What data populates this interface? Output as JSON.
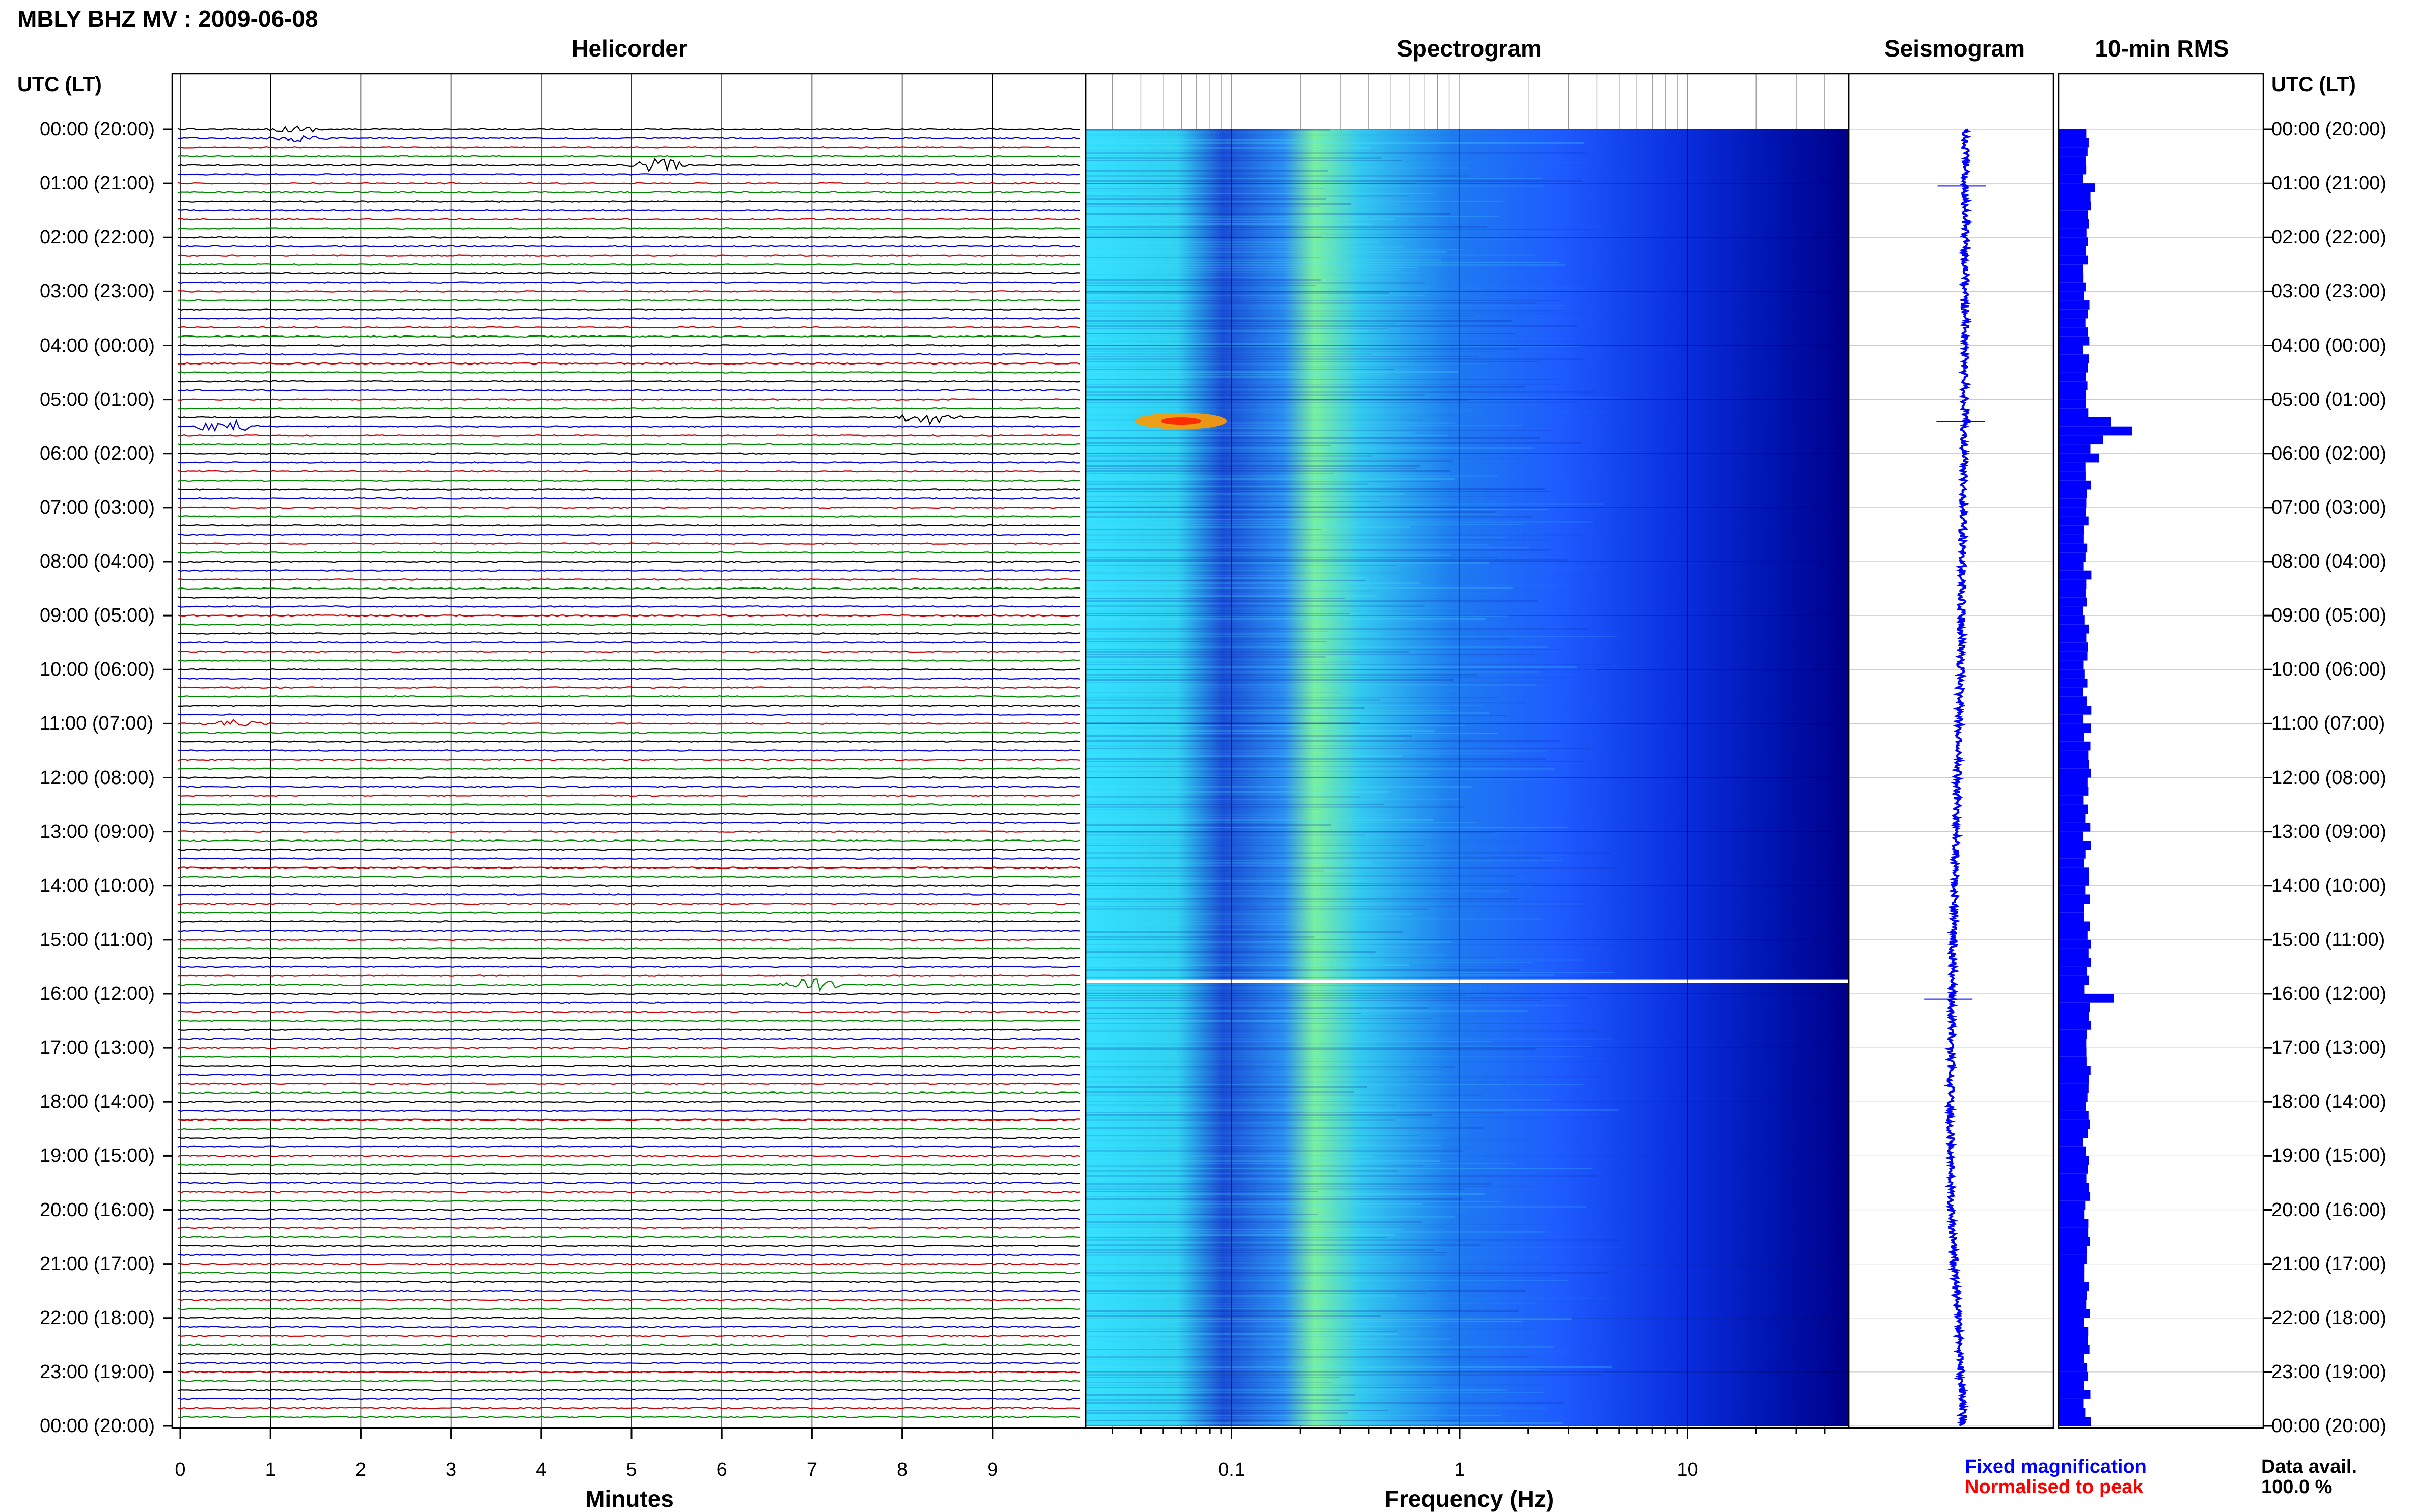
{
  "title": "MBLY BHZ MV : 2009-06-08",
  "panels": {
    "helicorder": "Helicorder",
    "spectrogram": "Spectrogram",
    "seismogram": "Seismogram",
    "rms": "10-min RMS"
  },
  "utc_header_left": "UTC (LT)",
  "utc_header_right": "UTC (LT)",
  "time_labels": [
    "00:00 (20:00)",
    "01:00 (21:00)",
    "02:00 (22:00)",
    "03:00 (23:00)",
    "04:00 (00:00)",
    "05:00 (01:00)",
    "06:00 (02:00)",
    "07:00 (03:00)",
    "08:00 (04:00)",
    "09:00 (05:00)",
    "10:00 (06:00)",
    "11:00 (07:00)",
    "12:00 (08:00)",
    "13:00 (09:00)",
    "14:00 (10:00)",
    "15:00 (11:00)",
    "16:00 (12:00)",
    "17:00 (13:00)",
    "18:00 (14:00)",
    "19:00 (15:00)",
    "20:00 (16:00)",
    "21:00 (17:00)",
    "22:00 (18:00)",
    "23:00 (19:00)",
    "00:00 (20:00)"
  ],
  "helicorder_axis": {
    "label": "Minutes",
    "ticks": [
      "0",
      "1",
      "2",
      "3",
      "4",
      "5",
      "6",
      "7",
      "8",
      "9"
    ]
  },
  "spectrogram_axis": {
    "label": "Frequency (Hz)",
    "ticks": [
      "0.1",
      "1",
      "10"
    ]
  },
  "legend": {
    "fixed": "Fixed magnification",
    "normalised": "Normalised to peak",
    "fixed_color": "#0000ff",
    "normalised_color": "#ff0000"
  },
  "data_availability": {
    "label": "Data avail.",
    "value": "100.0 %"
  },
  "colors": {
    "trace_cycle": [
      "#000000",
      "#0000cc",
      "#cc0000",
      "#008800"
    ],
    "spectrogram_low": "#00008a",
    "spectrogram_mid": "#1e5cff",
    "spectrogram_high": "#34e0ff",
    "rms_bar": "#0000ff"
  },
  "chart_data": [
    {
      "type": "line",
      "name": "helicorder",
      "title": "Helicorder",
      "xlabel": "Minutes",
      "xlim": [
        0,
        10
      ],
      "x_ticks": [
        0,
        1,
        2,
        3,
        4,
        5,
        6,
        7,
        8,
        9
      ],
      "hours": 24,
      "lines_per_hour": 6,
      "events": [
        {
          "hour": 0.05,
          "minute": 1.3,
          "amplitude": 0.4,
          "trace": "black"
        },
        {
          "hour": 0.67,
          "minute": 5.3,
          "amplitude": 0.9,
          "trace": "red"
        },
        {
          "hour": 5.35,
          "minute": 8.3,
          "amplitude": 1.0,
          "trace": "black"
        },
        {
          "hour": 5.5,
          "minute": 0.5,
          "amplitude": 1.0,
          "trace": "black"
        },
        {
          "hour": 15.83,
          "minute": 7.0,
          "amplitude": 1.0,
          "trace": "black"
        },
        {
          "hour": 10.97,
          "minute": 0.6,
          "amplitude": 0.5,
          "trace": "blue"
        }
      ]
    },
    {
      "type": "heatmap",
      "name": "spectrogram",
      "title": "Spectrogram",
      "xlabel": "Frequency (Hz)",
      "x_scale": "log",
      "xlim": [
        0.02,
        50
      ],
      "x_ticks": [
        0.1,
        1,
        10
      ],
      "ylim_hours": [
        0,
        24
      ],
      "features": [
        {
          "type": "band",
          "frequency_hz": [
            0.2,
            0.3
          ],
          "intensity": "high"
        },
        {
          "type": "event",
          "hour": 5.4,
          "frequency_hz": [
            0.03,
            0.12
          ],
          "intensity": "very high"
        },
        {
          "type": "gap",
          "hour": 15.77
        }
      ]
    },
    {
      "type": "line",
      "name": "seismogram",
      "title": "Seismogram",
      "ylim_hours": [
        0,
        24
      ],
      "drift": [
        {
          "hour": 0,
          "offset": 0.2
        },
        {
          "hour": 5,
          "offset": 0.18
        },
        {
          "hour": 10,
          "offset": 0.1
        },
        {
          "hour": 15,
          "offset": -0.05
        },
        {
          "hour": 18,
          "offset": -0.1
        },
        {
          "hour": 20,
          "offset": -0.1
        },
        {
          "hour": 22,
          "offset": 0.05
        },
        {
          "hour": 24,
          "offset": 0.15
        }
      ],
      "spikes_hours": [
        1.05,
        5.4,
        16.1
      ]
    },
    {
      "type": "bar",
      "name": "rms",
      "title": "10-min RMS",
      "orientation": "horizontal",
      "ylim_hours": [
        0,
        24
      ],
      "baseline": 0.14,
      "spikes": [
        {
          "hour": 1.0,
          "value": 0.18
        },
        {
          "hour": 5.3,
          "value": 0.26
        },
        {
          "hour": 5.5,
          "value": 0.36
        },
        {
          "hour": 5.7,
          "value": 0.22
        },
        {
          "hour": 6.0,
          "value": 0.2
        },
        {
          "hour": 16.0,
          "value": 0.27
        }
      ]
    }
  ]
}
